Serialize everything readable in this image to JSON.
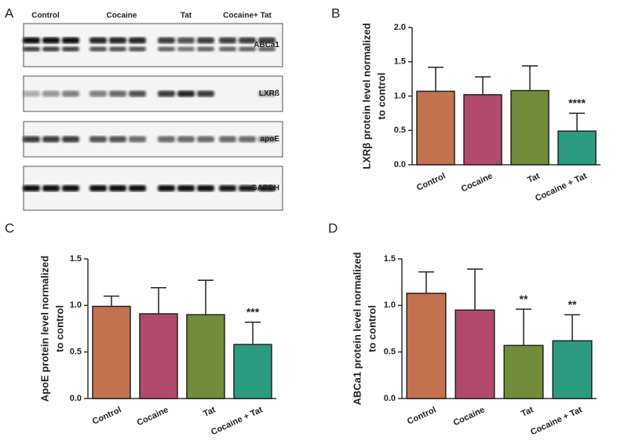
{
  "blot": {
    "label": "A",
    "groups": [
      "Control",
      "Cocaine",
      "Tat",
      "Cocaine+ Tat"
    ],
    "bands": [
      "ABCa1",
      "LXRß",
      "apoE",
      "GAPDH"
    ]
  },
  "chart_data": [
    {
      "type": "bar",
      "panel_label": "B",
      "ylabel": [
        "LXRβ protein level normalized",
        "to control"
      ],
      "categories": [
        "Control",
        "Cocaine",
        "Tat",
        "Cocaine + Tat"
      ],
      "values": [
        1.07,
        1.02,
        1.08,
        0.49
      ],
      "errors": [
        0.35,
        0.26,
        0.36,
        0.26
      ],
      "annotations": [
        null,
        null,
        null,
        "****"
      ],
      "colors": [
        "#c4714e",
        "#b14a6c",
        "#708e3a",
        "#2b9c80"
      ],
      "ylim": [
        0,
        2
      ],
      "yticks": [
        {
          "value": 0,
          "label": "0.0"
        },
        {
          "value": 0.5,
          "label": "0.5"
        },
        {
          "value": 1,
          "label": "1.0"
        },
        {
          "value": 1.5,
          "label": "1.5"
        },
        {
          "value": 2,
          "label": "2.0"
        }
      ]
    },
    {
      "type": "bar",
      "panel_label": "C",
      "ylabel": [
        "ApoE protein level normalized",
        "to control"
      ],
      "categories": [
        "Control",
        "Cocaine",
        "Tat",
        "Cocaine + Tat"
      ],
      "values": [
        0.99,
        0.91,
        0.9,
        0.58
      ],
      "errors": [
        0.11,
        0.28,
        0.37,
        0.24
      ],
      "annotations": [
        null,
        null,
        null,
        "***"
      ],
      "colors": [
        "#c4714e",
        "#b14a6c",
        "#708e3a",
        "#2b9c80"
      ],
      "ylim": [
        0,
        1.5
      ],
      "yticks": [
        {
          "value": 0,
          "label": "0.0"
        },
        {
          "value": 0.5,
          "label": "0.5"
        },
        {
          "value": 1,
          "label": "1.0"
        },
        {
          "value": 1.5,
          "label": "1.5"
        }
      ]
    },
    {
      "type": "bar",
      "panel_label": "D",
      "ylabel": [
        "ABCa1 protein level normalized",
        "to control"
      ],
      "categories": [
        "Control",
        "Cocaine",
        "Tat",
        "Cocaine + Tat"
      ],
      "values": [
        1.13,
        0.95,
        0.57,
        0.62
      ],
      "errors": [
        0.23,
        0.44,
        0.39,
        0.28
      ],
      "annotations": [
        null,
        null,
        "**",
        "**"
      ],
      "colors": [
        "#c4714e",
        "#b14a6c",
        "#708e3a",
        "#2b9c80"
      ],
      "ylim": [
        0,
        1.5
      ],
      "yticks": [
        {
          "value": 0,
          "label": "0.0"
        },
        {
          "value": 0.5,
          "label": "0.5"
        },
        {
          "value": 1,
          "label": "1.0"
        },
        {
          "value": 1.5,
          "label": "1.5"
        }
      ]
    }
  ]
}
